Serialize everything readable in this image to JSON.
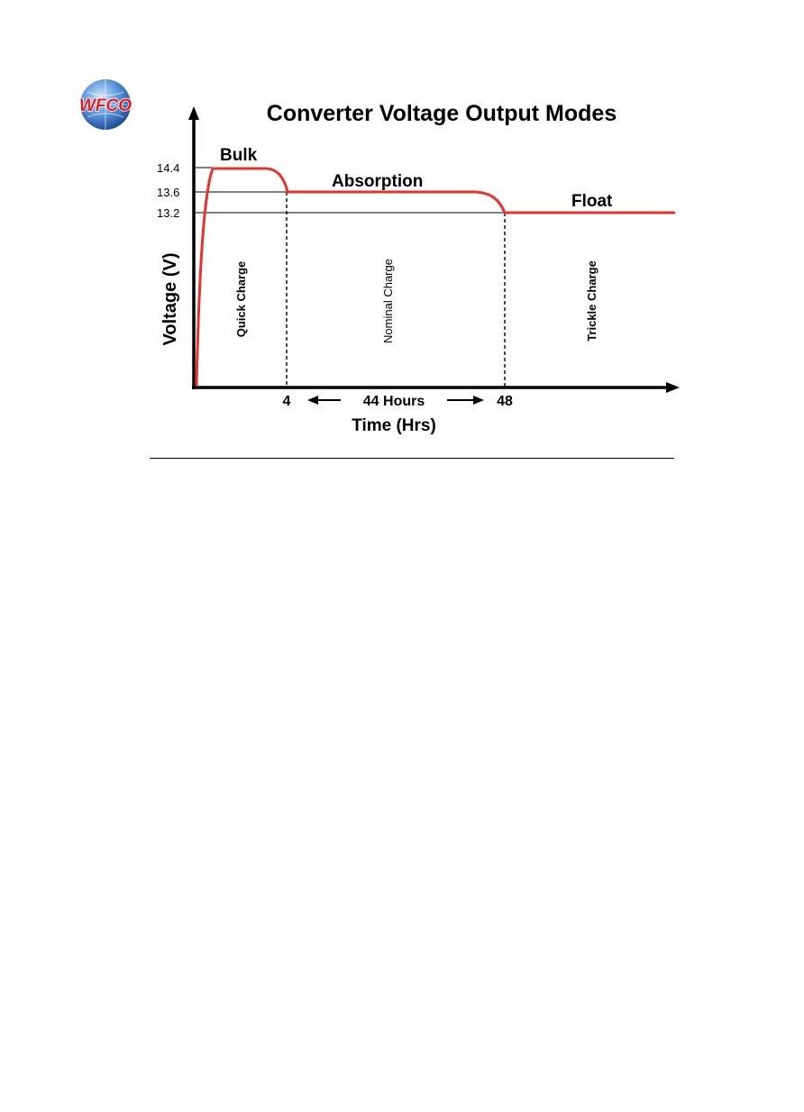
{
  "logo": {
    "text": "WFCO",
    "colors": {
      "text": "#e01b22",
      "globe": "#2b6cc4",
      "globe_light": "#9fc6ef"
    }
  },
  "chart_data": {
    "type": "line",
    "title": "Converter Voltage Output Modes",
    "xlabel": "Time (Hrs)",
    "ylabel": "Voltage (V)",
    "y_ticks": [
      "14.4",
      "13.6",
      "13.2"
    ],
    "x_ticks": [
      "4",
      "48"
    ],
    "x_span_label": "44 Hours",
    "stages": [
      {
        "name": "Bulk",
        "voltage": 14.4
      },
      {
        "name": "Absorption",
        "voltage": 13.6
      },
      {
        "name": "Float",
        "voltage": 13.2
      }
    ],
    "regions": [
      "Quick Charge",
      "Nominal Charge",
      "Trickle Charge"
    ],
    "line_color": "#e8312b"
  }
}
